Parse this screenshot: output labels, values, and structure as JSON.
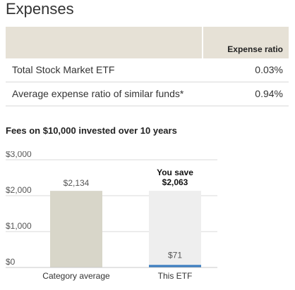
{
  "expenses": {
    "title": "Expenses",
    "column_header": "Expense ratio",
    "rows": [
      {
        "name": "Total Stock Market ETF",
        "value": "0.03%"
      },
      {
        "name": "Average expense ratio of similar funds*",
        "value": "0.94%"
      }
    ]
  },
  "chart_data": {
    "type": "bar",
    "title": "Fees on $10,000 invested over 10 years",
    "categories": [
      "Category average",
      "This ETF"
    ],
    "values": [
      2134,
      71
    ],
    "data_labels": [
      "$2,134",
      "$71"
    ],
    "y_ticks": [
      "$0",
      "$1,000",
      "$2,000",
      "$3,000"
    ],
    "ylim": [
      0,
      3000
    ],
    "savings": {
      "line1": "You save",
      "line2": "$2,063",
      "value": 2063
    },
    "colors": {
      "category_bar": "#d8d6c9",
      "etf_bar": "#3a7dc0",
      "savings_bg": "#eeeeee",
      "grid": "#d9d9d9",
      "baseline": "#c8c8c8"
    },
    "grid": true,
    "legend": "none"
  }
}
